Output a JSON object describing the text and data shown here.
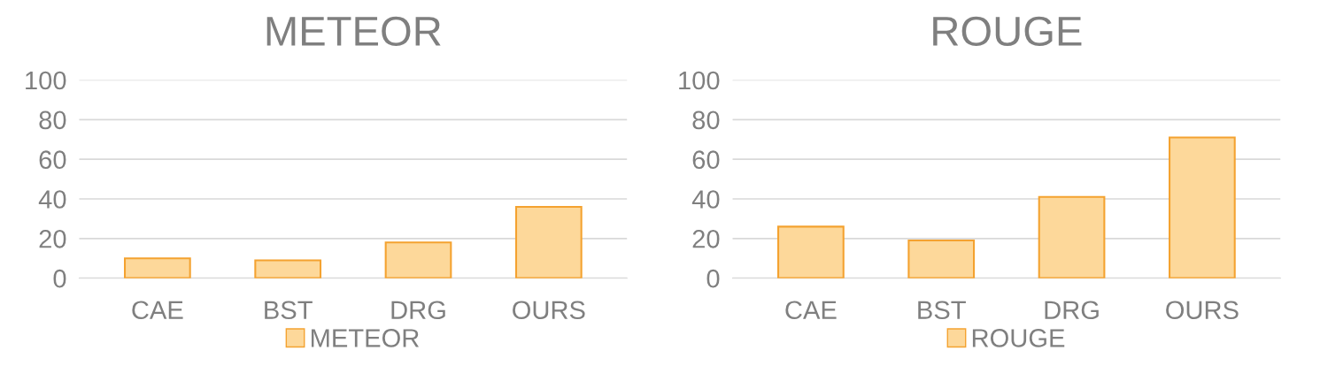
{
  "chart_data": [
    {
      "type": "bar",
      "title": "METEOR",
      "categories": [
        "CAE",
        "BST",
        "DRG",
        "OURS"
      ],
      "series": [
        {
          "name": "METEOR",
          "color": "#fdd89a",
          "values": [
            10,
            9,
            18,
            36
          ]
        }
      ],
      "ylim": [
        0,
        100
      ],
      "yticks": [
        0,
        20,
        40,
        60,
        80,
        100
      ],
      "grid": "y",
      "legend": "bottom"
    },
    {
      "type": "bar",
      "title": "ROUGE",
      "categories": [
        "CAE",
        "BST",
        "DRG",
        "OURS"
      ],
      "series": [
        {
          "name": "ROUGE",
          "color": "#fdd89a",
          "values": [
            26,
            19,
            41,
            71
          ]
        }
      ],
      "ylim": [
        0,
        100
      ],
      "yticks": [
        0,
        20,
        40,
        60,
        80,
        100
      ],
      "grid": "y",
      "legend": "bottom"
    }
  ]
}
